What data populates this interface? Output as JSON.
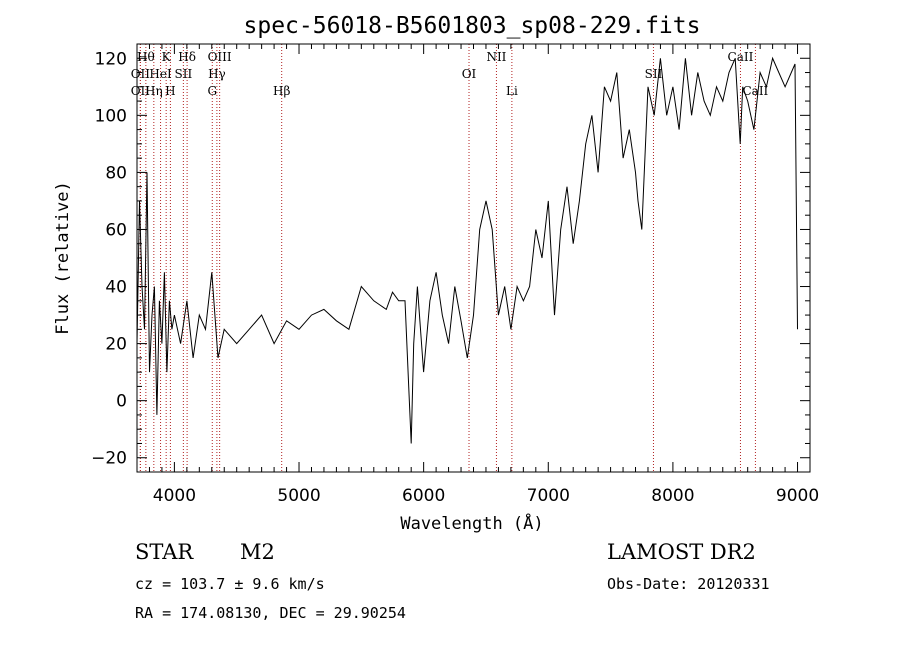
{
  "chart_data": {
    "type": "line",
    "title": "spec-56018-B5601803_sp08-229.fits",
    "xlabel": "Wavelength (Å)",
    "ylabel": "Flux (relative)",
    "xlim": [
      3700,
      9100
    ],
    "ylim": [
      -25,
      125
    ],
    "xticks": [
      {
        "value": 4000,
        "label": "4000"
      },
      {
        "value": 5000,
        "label": "5000"
      },
      {
        "value": 6000,
        "label": "6000"
      },
      {
        "value": 7000,
        "label": "7000"
      },
      {
        "value": 8000,
        "label": "8000"
      },
      {
        "value": 9000,
        "label": "9000"
      }
    ],
    "yticks": [
      {
        "value": -20,
        "label": "−20"
      },
      {
        "value": 0,
        "label": "0"
      },
      {
        "value": 20,
        "label": "20"
      },
      {
        "value": 40,
        "label": "40"
      },
      {
        "value": 60,
        "label": "60"
      },
      {
        "value": 80,
        "label": "80"
      },
      {
        "value": 100,
        "label": "100"
      },
      {
        "value": 120,
        "label": "120"
      }
    ],
    "series": [
      {
        "x": [
          3700,
          3720,
          3740,
          3760,
          3780,
          3800,
          3820,
          3840,
          3860,
          3880,
          3900,
          3920,
          3940,
          3960,
          3980,
          4000,
          4050,
          4100,
          4150,
          4200,
          4250,
          4300,
          4350,
          4400,
          4500,
          4600,
          4700,
          4800,
          4900,
          5000,
          5100,
          5200,
          5300,
          5400,
          5500,
          5600,
          5700,
          5750,
          5800,
          5850,
          5880,
          5900,
          5920,
          5950,
          6000,
          6050,
          6100,
          6150,
          6200,
          6250,
          6300,
          6350,
          6400,
          6450,
          6500,
          6550,
          6600,
          6650,
          6700,
          6750,
          6800,
          6850,
          6900,
          6950,
          7000,
          7050,
          7100,
          7150,
          7200,
          7250,
          7300,
          7350,
          7400,
          7450,
          7500,
          7550,
          7600,
          7650,
          7700,
          7720,
          7750,
          7800,
          7850,
          7900,
          7950,
          8000,
          8050,
          8100,
          8150,
          8200,
          8250,
          8300,
          8350,
          8400,
          8450,
          8500,
          8540,
          8560,
          8600,
          8650,
          8700,
          8750,
          8800,
          8850,
          8900,
          8950,
          8980,
          9000
        ],
        "y": [
          20,
          70,
          40,
          25,
          80,
          10,
          30,
          40,
          -5,
          35,
          20,
          45,
          10,
          35,
          25,
          30,
          20,
          35,
          15,
          30,
          25,
          45,
          15,
          25,
          20,
          25,
          30,
          20,
          28,
          25,
          30,
          32,
          28,
          25,
          40,
          35,
          32,
          38,
          35,
          35,
          5,
          -15,
          20,
          40,
          10,
          35,
          45,
          30,
          20,
          40,
          28,
          15,
          30,
          60,
          70,
          60,
          30,
          40,
          25,
          40,
          35,
          40,
          60,
          50,
          70,
          30,
          60,
          75,
          55,
          70,
          90,
          100,
          80,
          110,
          105,
          115,
          85,
          95,
          80,
          70,
          60,
          110,
          100,
          120,
          100,
          110,
          95,
          120,
          100,
          115,
          105,
          100,
          110,
          105,
          115,
          120,
          90,
          110,
          105,
          95,
          115,
          110,
          120,
          115,
          110,
          115,
          118,
          25
        ]
      }
    ],
    "lines": [
      {
        "x": 3771,
        "label": "Hθ",
        "row": 0
      },
      {
        "x": 3727,
        "label": "OII",
        "row": 1
      },
      {
        "x": 3727,
        "label": "OII",
        "row": 2
      },
      {
        "x": 3835,
        "label": "Hη",
        "row": 2
      },
      {
        "x": 3889,
        "label": "HeI",
        "row": 1
      },
      {
        "x": 3934,
        "label": "K",
        "row": 0
      },
      {
        "x": 3968,
        "label": "H",
        "row": 2
      },
      {
        "x": 4072,
        "label": "SII",
        "row": 1
      },
      {
        "x": 4102,
        "label": "Hδ",
        "row": 0
      },
      {
        "x": 4304,
        "label": "G",
        "row": 2
      },
      {
        "x": 4341,
        "label": "Hγ",
        "row": 1
      },
      {
        "x": 4363,
        "label": "OIII",
        "row": 0
      },
      {
        "x": 4861,
        "label": "Hβ",
        "row": 2
      },
      {
        "x": 6364,
        "label": "OI",
        "row": 1
      },
      {
        "x": 6584,
        "label": "NII",
        "row": 0
      },
      {
        "x": 6708,
        "label": "Li",
        "row": 2
      },
      {
        "x": 7844,
        "label": "SII",
        "row": 1
      },
      {
        "x": 8542,
        "label": "CaII",
        "row": 0
      },
      {
        "x": 8662,
        "label": "CaII",
        "row": 2
      }
    ]
  },
  "info": {
    "class_label": "STAR",
    "subclass": "M2",
    "survey": "LAMOST DR2",
    "cz": "cz = 103.7 ± 9.6 km/s",
    "obs_date": "Obs-Date: 20120331",
    "coords": "RA = 174.08130, DEC =  29.90254"
  }
}
